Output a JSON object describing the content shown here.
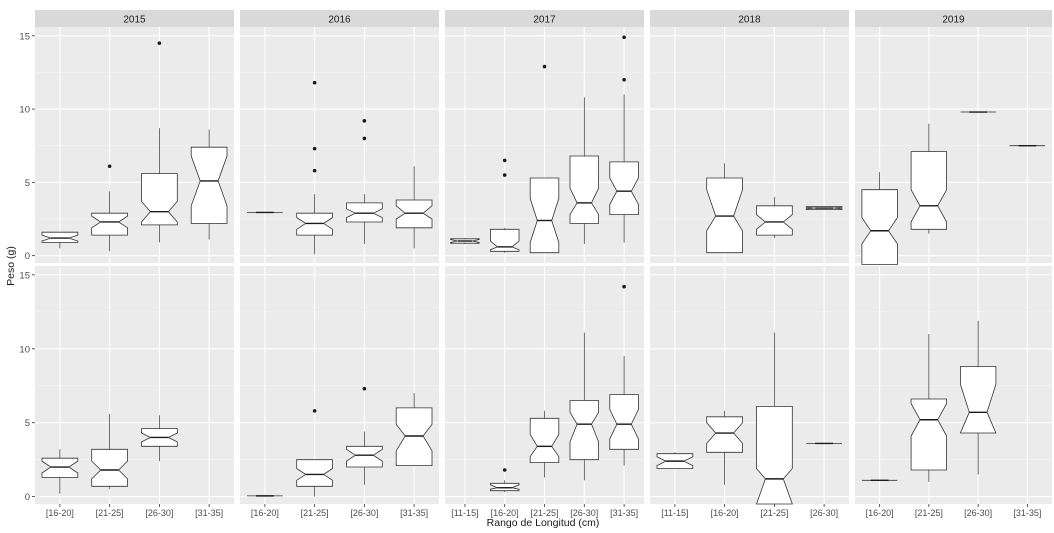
{
  "chart_data": {
    "type": "box",
    "facets": [
      "2015",
      "2016",
      "2017",
      "2018",
      "2019"
    ],
    "xlabel": "Rango de Longitud (cm)",
    "ylabel": "Peso (g)",
    "ylim": [
      -0.5,
      15.6
    ],
    "yticks": [
      0,
      5,
      10,
      15
    ],
    "x_categories": {
      "2015": [
        "[16-20]",
        "[21-25]",
        "[26-30]",
        "[31-35]"
      ],
      "2016": [
        "[16-20]",
        "[21-25]",
        "[26-30]",
        "[31-35]"
      ],
      "2017": [
        "[11-15]",
        "[16-20]",
        "[21-25]",
        "[26-30]",
        "[31-35]"
      ],
      "2018": [
        "[11-15]",
        "[16-20]",
        "[21-25]",
        "[26-30]"
      ],
      "2019": [
        "[16-20]",
        "[21-25]",
        "[26-30]",
        "[31-35]"
      ]
    },
    "rows": [
      {
        "facets": [
          {
            "year": "2015",
            "boxes": [
              {
                "cat": "[16-20]",
                "wlo": 0.5,
                "q1": 0.9,
                "med": 1.2,
                "q3": 1.6,
                "whi": 1.6,
                "nlo": 1.0,
                "nhi": 1.4,
                "out": []
              },
              {
                "cat": "[21-25]",
                "wlo": 0.3,
                "q1": 1.4,
                "med": 2.3,
                "q3": 2.9,
                "whi": 4.4,
                "nlo": 1.9,
                "nhi": 2.7,
                "out": [
                  6.1
                ]
              },
              {
                "cat": "[26-30]",
                "wlo": 0.9,
                "q1": 2.1,
                "med": 3.0,
                "q3": 5.6,
                "whi": 8.7,
                "nlo": 2.3,
                "nhi": 3.7,
                "out": [
                  14.5
                ]
              },
              {
                "cat": "[31-35]",
                "wlo": 1.1,
                "q1": 2.2,
                "med": 5.1,
                "q3": 7.4,
                "whi": 8.6,
                "nlo": 3.4,
                "nhi": 6.8,
                "out": []
              }
            ]
          },
          {
            "year": "2016",
            "boxes": [
              {
                "cat": "[16-20]",
                "wlo": 2.95,
                "q1": 2.95,
                "med": 2.95,
                "q3": 2.95,
                "whi": 2.95,
                "nlo": 2.95,
                "nhi": 2.95,
                "out": []
              },
              {
                "cat": "[21-25]",
                "wlo": 0.1,
                "q1": 1.4,
                "med": 2.2,
                "q3": 2.9,
                "whi": 4.2,
                "nlo": 1.8,
                "nhi": 2.6,
                "out": [
                  5.8,
                  7.3,
                  11.8
                ]
              },
              {
                "cat": "[26-30]",
                "wlo": 0.8,
                "q1": 2.3,
                "med": 2.9,
                "q3": 3.6,
                "whi": 4.2,
                "nlo": 2.6,
                "nhi": 3.2,
                "out": [
                  8.0,
                  9.2
                ]
              },
              {
                "cat": "[31-35]",
                "wlo": 0.5,
                "q1": 1.9,
                "med": 2.9,
                "q3": 3.8,
                "whi": 6.1,
                "nlo": 2.5,
                "nhi": 3.4,
                "out": []
              }
            ]
          },
          {
            "year": "2017",
            "boxes": [
              {
                "cat": "[11-15]",
                "wlo": 0.8,
                "q1": 0.85,
                "med": 1.0,
                "q3": 1.15,
                "whi": 1.2,
                "nlo": 0.9,
                "nhi": 1.1,
                "out": []
              },
              {
                "cat": "[16-20]",
                "wlo": 0.2,
                "q1": 0.3,
                "med": 0.6,
                "q3": 1.8,
                "whi": 1.9,
                "nlo": 0.4,
                "nhi": 1.0,
                "out": [
                  5.5,
                  6.5
                ]
              },
              {
                "cat": "[21-25]",
                "wlo": 0.2,
                "q1": 0.2,
                "med": 2.4,
                "q3": 5.3,
                "whi": 5.3,
                "nlo": 0.9,
                "nhi": 3.9,
                "out": [
                  12.9
                ]
              },
              {
                "cat": "[26-30]",
                "wlo": 0.8,
                "q1": 2.2,
                "med": 3.6,
                "q3": 6.8,
                "whi": 10.8,
                "nlo": 2.8,
                "nhi": 4.6,
                "out": []
              },
              {
                "cat": "[31-35]",
                "wlo": 0.9,
                "q1": 2.8,
                "med": 4.4,
                "q3": 6.4,
                "whi": 11.0,
                "nlo": 3.5,
                "nhi": 5.3,
                "out": [
                  12.0,
                  14.9
                ]
              }
            ]
          },
          {
            "year": "2018",
            "boxes": [
              {
                "cat": "[16-20]",
                "wlo": 0.2,
                "q1": 0.2,
                "med": 2.7,
                "q3": 5.3,
                "whi": 6.3,
                "nlo": 1.7,
                "nhi": 4.5,
                "out": []
              },
              {
                "cat": "[21-25]",
                "wlo": 1.2,
                "q1": 1.4,
                "med": 2.3,
                "q3": 3.4,
                "whi": 4.0,
                "nlo": 1.8,
                "nhi": 2.8,
                "out": []
              },
              {
                "cat": "[26-30]",
                "wlo": 3.15,
                "q1": 3.15,
                "med": 3.25,
                "q3": 3.35,
                "whi": 3.35,
                "nlo": 3.2,
                "nhi": 3.3,
                "out": []
              }
            ]
          },
          {
            "year": "2019",
            "boxes": [
              {
                "cat": "[16-20]",
                "wlo": -0.6,
                "q1": -0.6,
                "med": 1.7,
                "q3": 4.5,
                "whi": 5.7,
                "nlo": 0.8,
                "nhi": 2.6,
                "out": []
              },
              {
                "cat": "[21-25]",
                "wlo": 1.5,
                "q1": 1.8,
                "med": 3.4,
                "q3": 7.1,
                "whi": 9.0,
                "nlo": 2.3,
                "nhi": 4.5,
                "out": []
              },
              {
                "cat": "[26-30]",
                "wlo": 9.8,
                "q1": 9.8,
                "med": 9.8,
                "q3": 9.8,
                "whi": 9.8,
                "nlo": 9.8,
                "nhi": 9.8,
                "out": []
              },
              {
                "cat": "[31-35]",
                "wlo": 7.5,
                "q1": 7.5,
                "med": 7.5,
                "q3": 7.5,
                "whi": 7.5,
                "nlo": 7.5,
                "nhi": 7.5,
                "out": []
              }
            ]
          }
        ]
      },
      {
        "facets": [
          {
            "year": "2015",
            "boxes": [
              {
                "cat": "[16-20]",
                "wlo": 0.2,
                "q1": 1.3,
                "med": 2.0,
                "q3": 2.6,
                "whi": 3.2,
                "nlo": 1.6,
                "nhi": 2.4,
                "out": []
              },
              {
                "cat": "[21-25]",
                "wlo": 0.5,
                "q1": 0.7,
                "med": 1.8,
                "q3": 3.2,
                "whi": 5.6,
                "nlo": 1.2,
                "nhi": 2.4,
                "out": []
              },
              {
                "cat": "[26-30]",
                "wlo": 2.4,
                "q1": 3.4,
                "med": 4.0,
                "q3": 4.6,
                "whi": 5.5,
                "nlo": 3.7,
                "nhi": 4.3,
                "out": []
              }
            ]
          },
          {
            "year": "2016",
            "boxes": [
              {
                "cat": "[16-20]",
                "wlo": 0.05,
                "q1": 0.05,
                "med": 0.05,
                "q3": 0.05,
                "whi": 0.05,
                "nlo": 0.05,
                "nhi": 0.05,
                "out": []
              },
              {
                "cat": "[21-25]",
                "wlo": 0.0,
                "q1": 0.7,
                "med": 1.5,
                "q3": 2.5,
                "whi": 2.5,
                "nlo": 1.1,
                "nhi": 1.9,
                "out": [
                  5.8
                ]
              },
              {
                "cat": "[26-30]",
                "wlo": 0.8,
                "q1": 2.0,
                "med": 2.8,
                "q3": 3.4,
                "whi": 4.4,
                "nlo": 2.4,
                "nhi": 3.2,
                "out": [
                  7.3
                ]
              },
              {
                "cat": "[31-35]",
                "wlo": 2.1,
                "q1": 2.1,
                "med": 4.1,
                "q3": 6.0,
                "whi": 7.0,
                "nlo": 3.1,
                "nhi": 4.9,
                "out": []
              }
            ]
          },
          {
            "year": "2017",
            "boxes": [
              {
                "cat": "[16-20]",
                "wlo": 0.3,
                "q1": 0.4,
                "med": 0.6,
                "q3": 0.9,
                "whi": 1.1,
                "nlo": 0.5,
                "nhi": 0.8,
                "out": [
                  1.8
                ]
              },
              {
                "cat": "[21-25]",
                "wlo": 1.3,
                "q1": 2.3,
                "med": 3.4,
                "q3": 5.3,
                "whi": 5.8,
                "nlo": 2.7,
                "nhi": 4.2,
                "out": []
              },
              {
                "cat": "[26-30]",
                "wlo": 1.1,
                "q1": 2.5,
                "med": 4.9,
                "q3": 6.5,
                "whi": 11.1,
                "nlo": 3.7,
                "nhi": 5.7,
                "out": []
              },
              {
                "cat": "[31-35]",
                "wlo": 2.1,
                "q1": 3.2,
                "med": 4.9,
                "q3": 6.9,
                "whi": 9.5,
                "nlo": 3.9,
                "nhi": 5.9,
                "out": [
                  14.2
                ]
              }
            ]
          },
          {
            "year": "2018",
            "boxes": [
              {
                "cat": "[11-15]",
                "wlo": 1.9,
                "q1": 1.9,
                "med": 2.4,
                "q3": 2.9,
                "whi": 3.0,
                "nlo": 2.1,
                "nhi": 2.7,
                "out": []
              },
              {
                "cat": "[16-20]",
                "wlo": 0.8,
                "q1": 3.0,
                "med": 4.3,
                "q3": 5.4,
                "whi": 5.8,
                "nlo": 3.6,
                "nhi": 5.0,
                "out": []
              },
              {
                "cat": "[21-25]",
                "wlo": -0.5,
                "q1": -0.5,
                "med": 1.2,
                "q3": 6.1,
                "whi": 11.1,
                "nlo": -0.5,
                "nhi": 1.9,
                "out": []
              },
              {
                "cat": "[26-30]",
                "wlo": 3.6,
                "q1": 3.6,
                "med": 3.6,
                "q3": 3.6,
                "whi": 3.6,
                "nlo": 3.6,
                "nhi": 3.6,
                "out": []
              }
            ]
          },
          {
            "year": "2019",
            "boxes": [
              {
                "cat": "[16-20]",
                "wlo": 1.1,
                "q1": 1.1,
                "med": 1.1,
                "q3": 1.1,
                "whi": 1.1,
                "nlo": 1.1,
                "nhi": 1.1,
                "out": []
              },
              {
                "cat": "[21-25]",
                "wlo": 1.0,
                "q1": 1.8,
                "med": 5.2,
                "q3": 6.6,
                "whi": 11.0,
                "nlo": 4.1,
                "nhi": 6.3,
                "out": []
              },
              {
                "cat": "[26-30]",
                "wlo": 1.5,
                "q1": 4.3,
                "med": 5.7,
                "q3": 8.8,
                "whi": 11.9,
                "nlo": 4.3,
                "nhi": 7.6,
                "out": []
              }
            ]
          }
        ]
      }
    ]
  }
}
